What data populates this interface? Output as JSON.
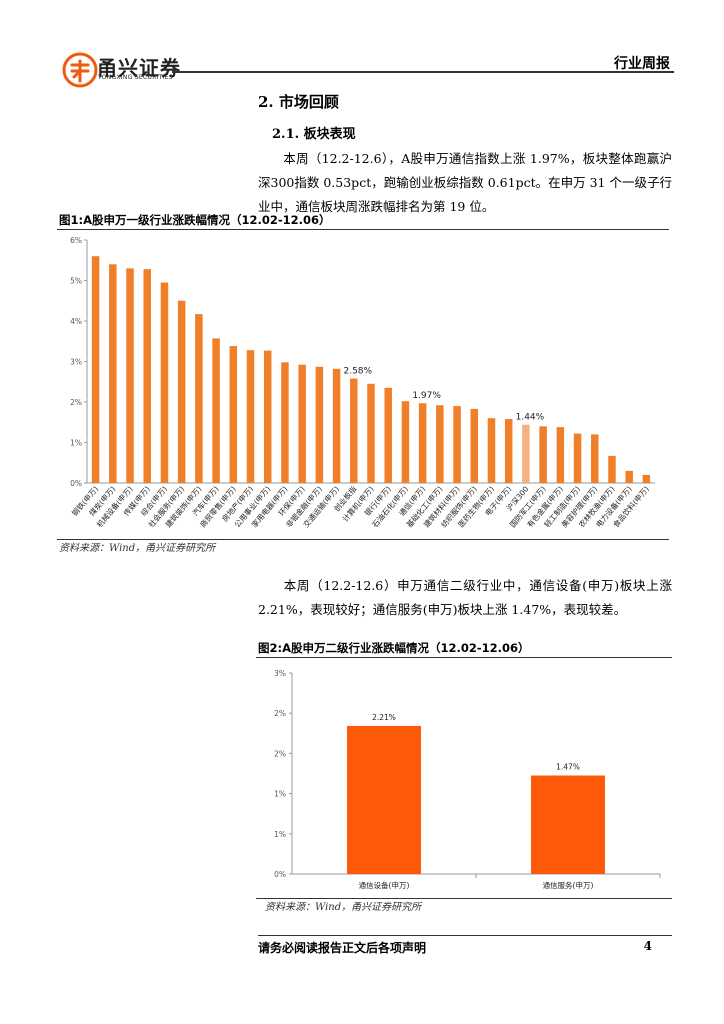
{
  "header": {
    "logo_cn": "甬兴证券",
    "logo_en": "YONGXING SECURITIES",
    "report_type": "行业周报"
  },
  "section": {
    "title": "2. 市场回顾",
    "subtitle": "2.1. 板块表现"
  },
  "paragraphs": {
    "p1": "本周（12.2-12.6），A股申万通信指数上涨 1.97%，板块整体跑赢沪深300指数 0.53pct，跑输创业板综指数 0.61pct。在申万 31 个一级子行业中，通信板块周涨跌幅排名为第 19 位。",
    "p2": "本周（12.2-12.6）申万通信二级行业中，通信设备(申万)板块上涨 2.21%，表现较好；通信服务(申万)板块上涨 1.47%，表现较差。"
  },
  "figure1": {
    "title": "图1:A股申万一级行业涨跌幅情况（12.02-12.06）",
    "source": "资料来源：Wind，甬兴证券研究所"
  },
  "figure2": {
    "title": "图2:A股申万二级行业涨跌幅情况（12.02-12.06）",
    "source": "资料来源：Wind，甬兴证券研究所"
  },
  "footer": {
    "text": "请务必阅读报告正文后各项声明",
    "page": "4"
  },
  "colors": {
    "bar_orange": "#f07f2a",
    "bar_highlight": "#f4b183",
    "bar_fig2": "#ff5a0a",
    "axis": "#999999"
  },
  "chart_data": [
    {
      "type": "bar",
      "ylim": [
        0,
        6
      ],
      "yticks": [
        "0%",
        "1%",
        "2%",
        "3%",
        "4%",
        "5%",
        "6%"
      ],
      "categories": [
        "钢铁(申万)",
        "煤炭(申万)",
        "机械设备(申万)",
        "传媒(申万)",
        "综合(申万)",
        "社会服务(申万)",
        "建筑装饰(申万)",
        "汽车(申万)",
        "商贸零售(申万)",
        "房地产(申万)",
        "公用事业(申万)",
        "家用电器(申万)",
        "环保(申万)",
        "非银金融(申万)",
        "交通运输(申万)",
        "创业板指",
        "计算机(申万)",
        "银行(申万)",
        "石油石化(申万)",
        "通信(申万)",
        "基础化工(申万)",
        "建筑材料(申万)",
        "纺织服饰(申万)",
        "医药生物(申万)",
        "电子(申万)",
        "沪深300",
        "国防军工(申万)",
        "有色金属(申万)",
        "轻工制造(申万)",
        "美容护理(申万)",
        "农林牧渔(申万)",
        "电力设备(申万)",
        "食品饮料(申万)"
      ],
      "values": [
        5.6,
        5.4,
        5.3,
        5.28,
        4.95,
        4.5,
        4.17,
        3.57,
        3.38,
        3.28,
        3.27,
        2.98,
        2.92,
        2.87,
        2.82,
        2.58,
        2.45,
        2.35,
        2.02,
        1.97,
        1.92,
        1.9,
        1.83,
        1.6,
        1.58,
        1.44,
        1.4,
        1.38,
        1.22,
        1.2,
        0.67,
        0.3,
        0.2
      ],
      "highlight_index": 25,
      "data_labels": [
        {
          "index": 15,
          "text": "2.58%"
        },
        {
          "index": 19,
          "text": "1.97%"
        },
        {
          "index": 25,
          "text": "1.44%"
        }
      ]
    },
    {
      "type": "bar",
      "ylim": [
        0,
        3
      ],
      "yticks": [
        "0%",
        "1%",
        "1%",
        "2%",
        "2%",
        "3%"
      ],
      "categories": [
        "通信设备(申万)",
        "通信服务(申万)"
      ],
      "values": [
        2.21,
        1.47
      ],
      "data_labels": [
        "2.21%",
        "1.47%"
      ]
    }
  ]
}
